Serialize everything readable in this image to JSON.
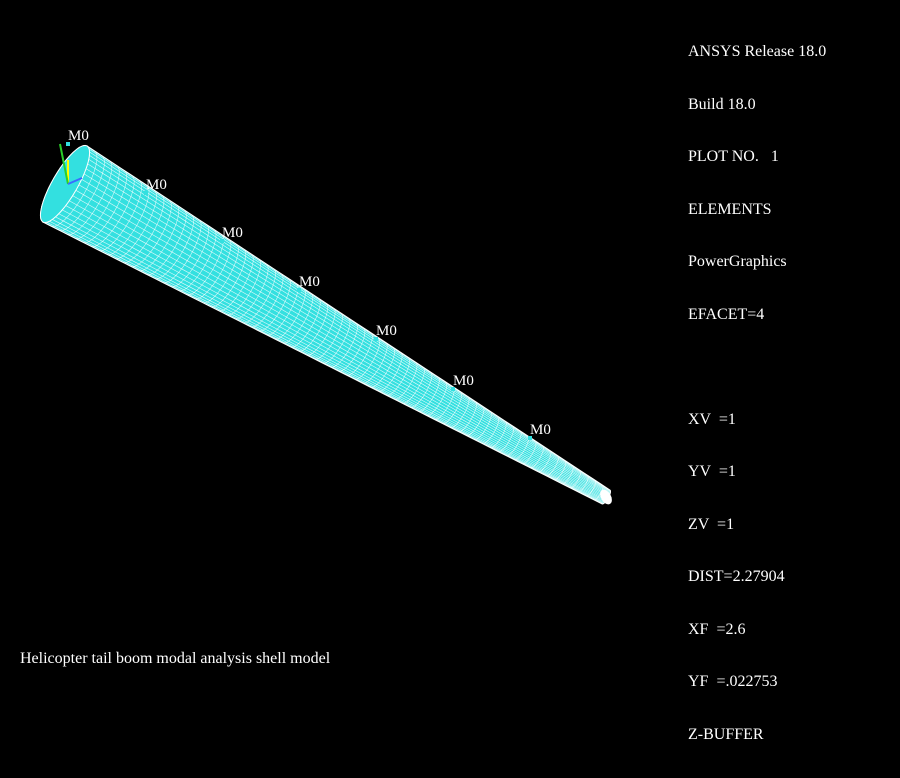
{
  "window": {
    "background": "#000000",
    "foreground": "#ffffff",
    "mesh_fill": "#33e0e0",
    "mesh_line": "#ffffff"
  },
  "info": {
    "release": "ANSYS Release 18.0",
    "build": "Build 18.0",
    "plot_no": "PLOT NO.   1",
    "plot_type": "ELEMENTS",
    "graphics": "PowerGraphics",
    "efacet": "EFACET=4",
    "xv": "XV  =1",
    "yv": "YV  =1",
    "zv": "ZV  =1",
    "dist": "DIST=2.27904",
    "xf": "XF  =2.6",
    "yf": "YF  =.022753",
    "zbuffer": "Z-BUFFER"
  },
  "mass_labels": [
    "M0",
    "M0",
    "M0",
    "M0",
    "M0",
    "M0",
    "M0"
  ],
  "triad": {
    "name": "global-axis-triad",
    "colors": [
      "#ffff00",
      "#2ad02a",
      "#3a6cff"
    ]
  },
  "title": "Helicopter tail boom modal analysis shell model"
}
